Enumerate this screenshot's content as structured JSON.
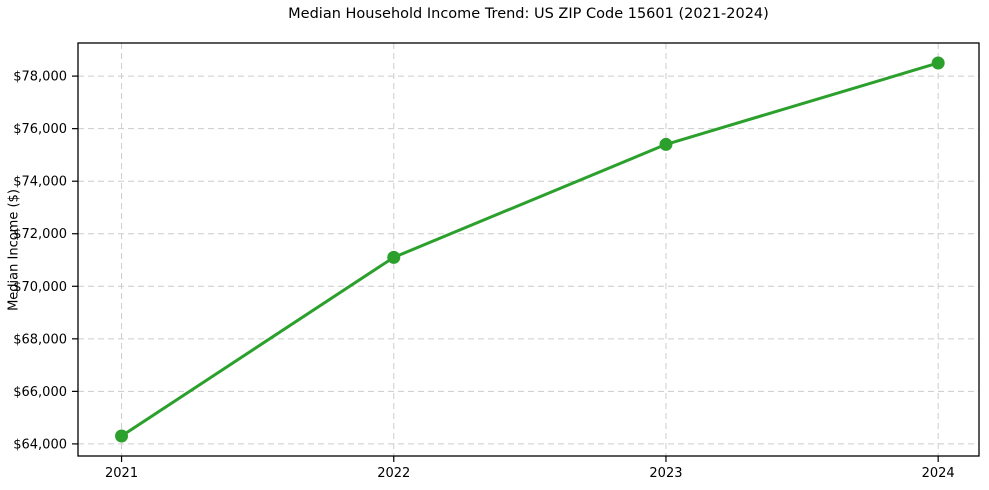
{
  "chart_data": {
    "type": "line",
    "title": "Median Household Income Trend: US ZIP Code 15601 (2021-2024)",
    "xlabel": "",
    "ylabel": "Median Income ($)",
    "x": [
      2021,
      2022,
      2023,
      2024
    ],
    "values": [
      64300,
      71100,
      75400,
      78500
    ],
    "xticks": {
      "values": [
        2021,
        2022,
        2023,
        2024
      ],
      "labels": [
        "2021",
        "2022",
        "2023",
        "2024"
      ]
    },
    "yticks": {
      "values": [
        64000,
        66000,
        68000,
        70000,
        72000,
        74000,
        76000,
        78000
      ],
      "labels": [
        "$64,000",
        "$66,000",
        "$68,000",
        "$70,000",
        "$72,000",
        "$74,000",
        "$76,000",
        "$78,000"
      ]
    },
    "xlim": [
      2020.84,
      2024.15
    ],
    "ylim": [
      63540,
      79260
    ],
    "grid": true,
    "grid_style": "dashed",
    "legend": null,
    "colors": {
      "line": "#2ca02c",
      "marker": "#2ca02c",
      "grid": "#cccccc",
      "spine": "#000000",
      "tick_text": "#000000",
      "background": "#ffffff"
    }
  }
}
